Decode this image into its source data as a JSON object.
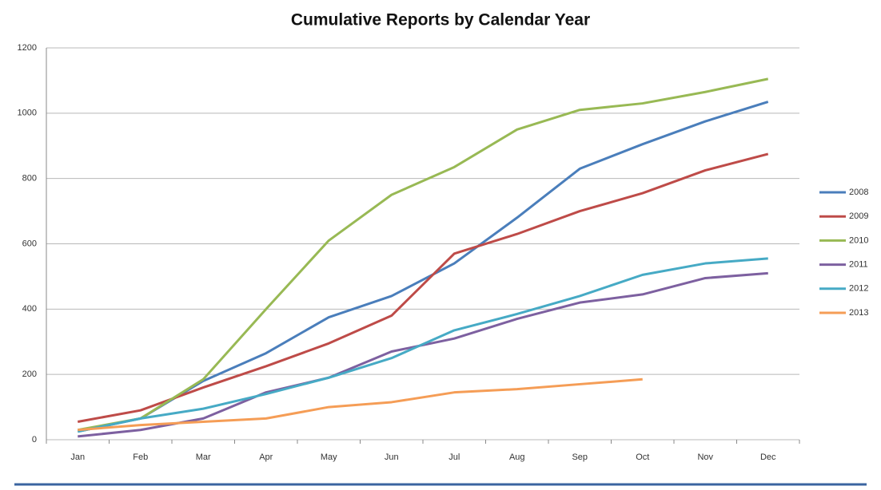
{
  "chart_data": {
    "type": "line",
    "title": "Cumulative Reports by Calendar Year",
    "categories": [
      "Jan",
      "Feb",
      "Mar",
      "Apr",
      "May",
      "Jun",
      "Jul",
      "Aug",
      "Sep",
      "Oct",
      "Nov",
      "Dec"
    ],
    "series": [
      {
        "name": "2008",
        "color": "#4a7ebb",
        "values": [
          25,
          65,
          180,
          265,
          375,
          440,
          540,
          680,
          830,
          905,
          975,
          1035
        ]
      },
      {
        "name": "2009",
        "color": "#be4b48",
        "values": [
          55,
          90,
          160,
          225,
          295,
          380,
          570,
          630,
          700,
          755,
          825,
          875
        ]
      },
      {
        "name": "2010",
        "color": "#98b954",
        "values": [
          30,
          65,
          185,
          400,
          610,
          750,
          835,
          950,
          1010,
          1030,
          1065,
          1105
        ]
      },
      {
        "name": "2011",
        "color": "#7d60a0",
        "values": [
          10,
          30,
          65,
          145,
          190,
          270,
          310,
          370,
          420,
          445,
          495,
          510
        ]
      },
      {
        "name": "2012",
        "color": "#46aac5",
        "values": [
          25,
          65,
          95,
          140,
          190,
          250,
          335,
          385,
          440,
          505,
          540,
          555
        ]
      },
      {
        "name": "2013",
        "color": "#f59d56",
        "values": [
          30,
          45,
          55,
          65,
          100,
          115,
          145,
          155,
          170,
          185,
          null,
          null
        ]
      }
    ],
    "ylim": [
      0,
      1200
    ],
    "yticks": [
      0,
      200,
      400,
      600,
      800,
      1000,
      1200
    ],
    "grid": true,
    "legend": "right"
  }
}
